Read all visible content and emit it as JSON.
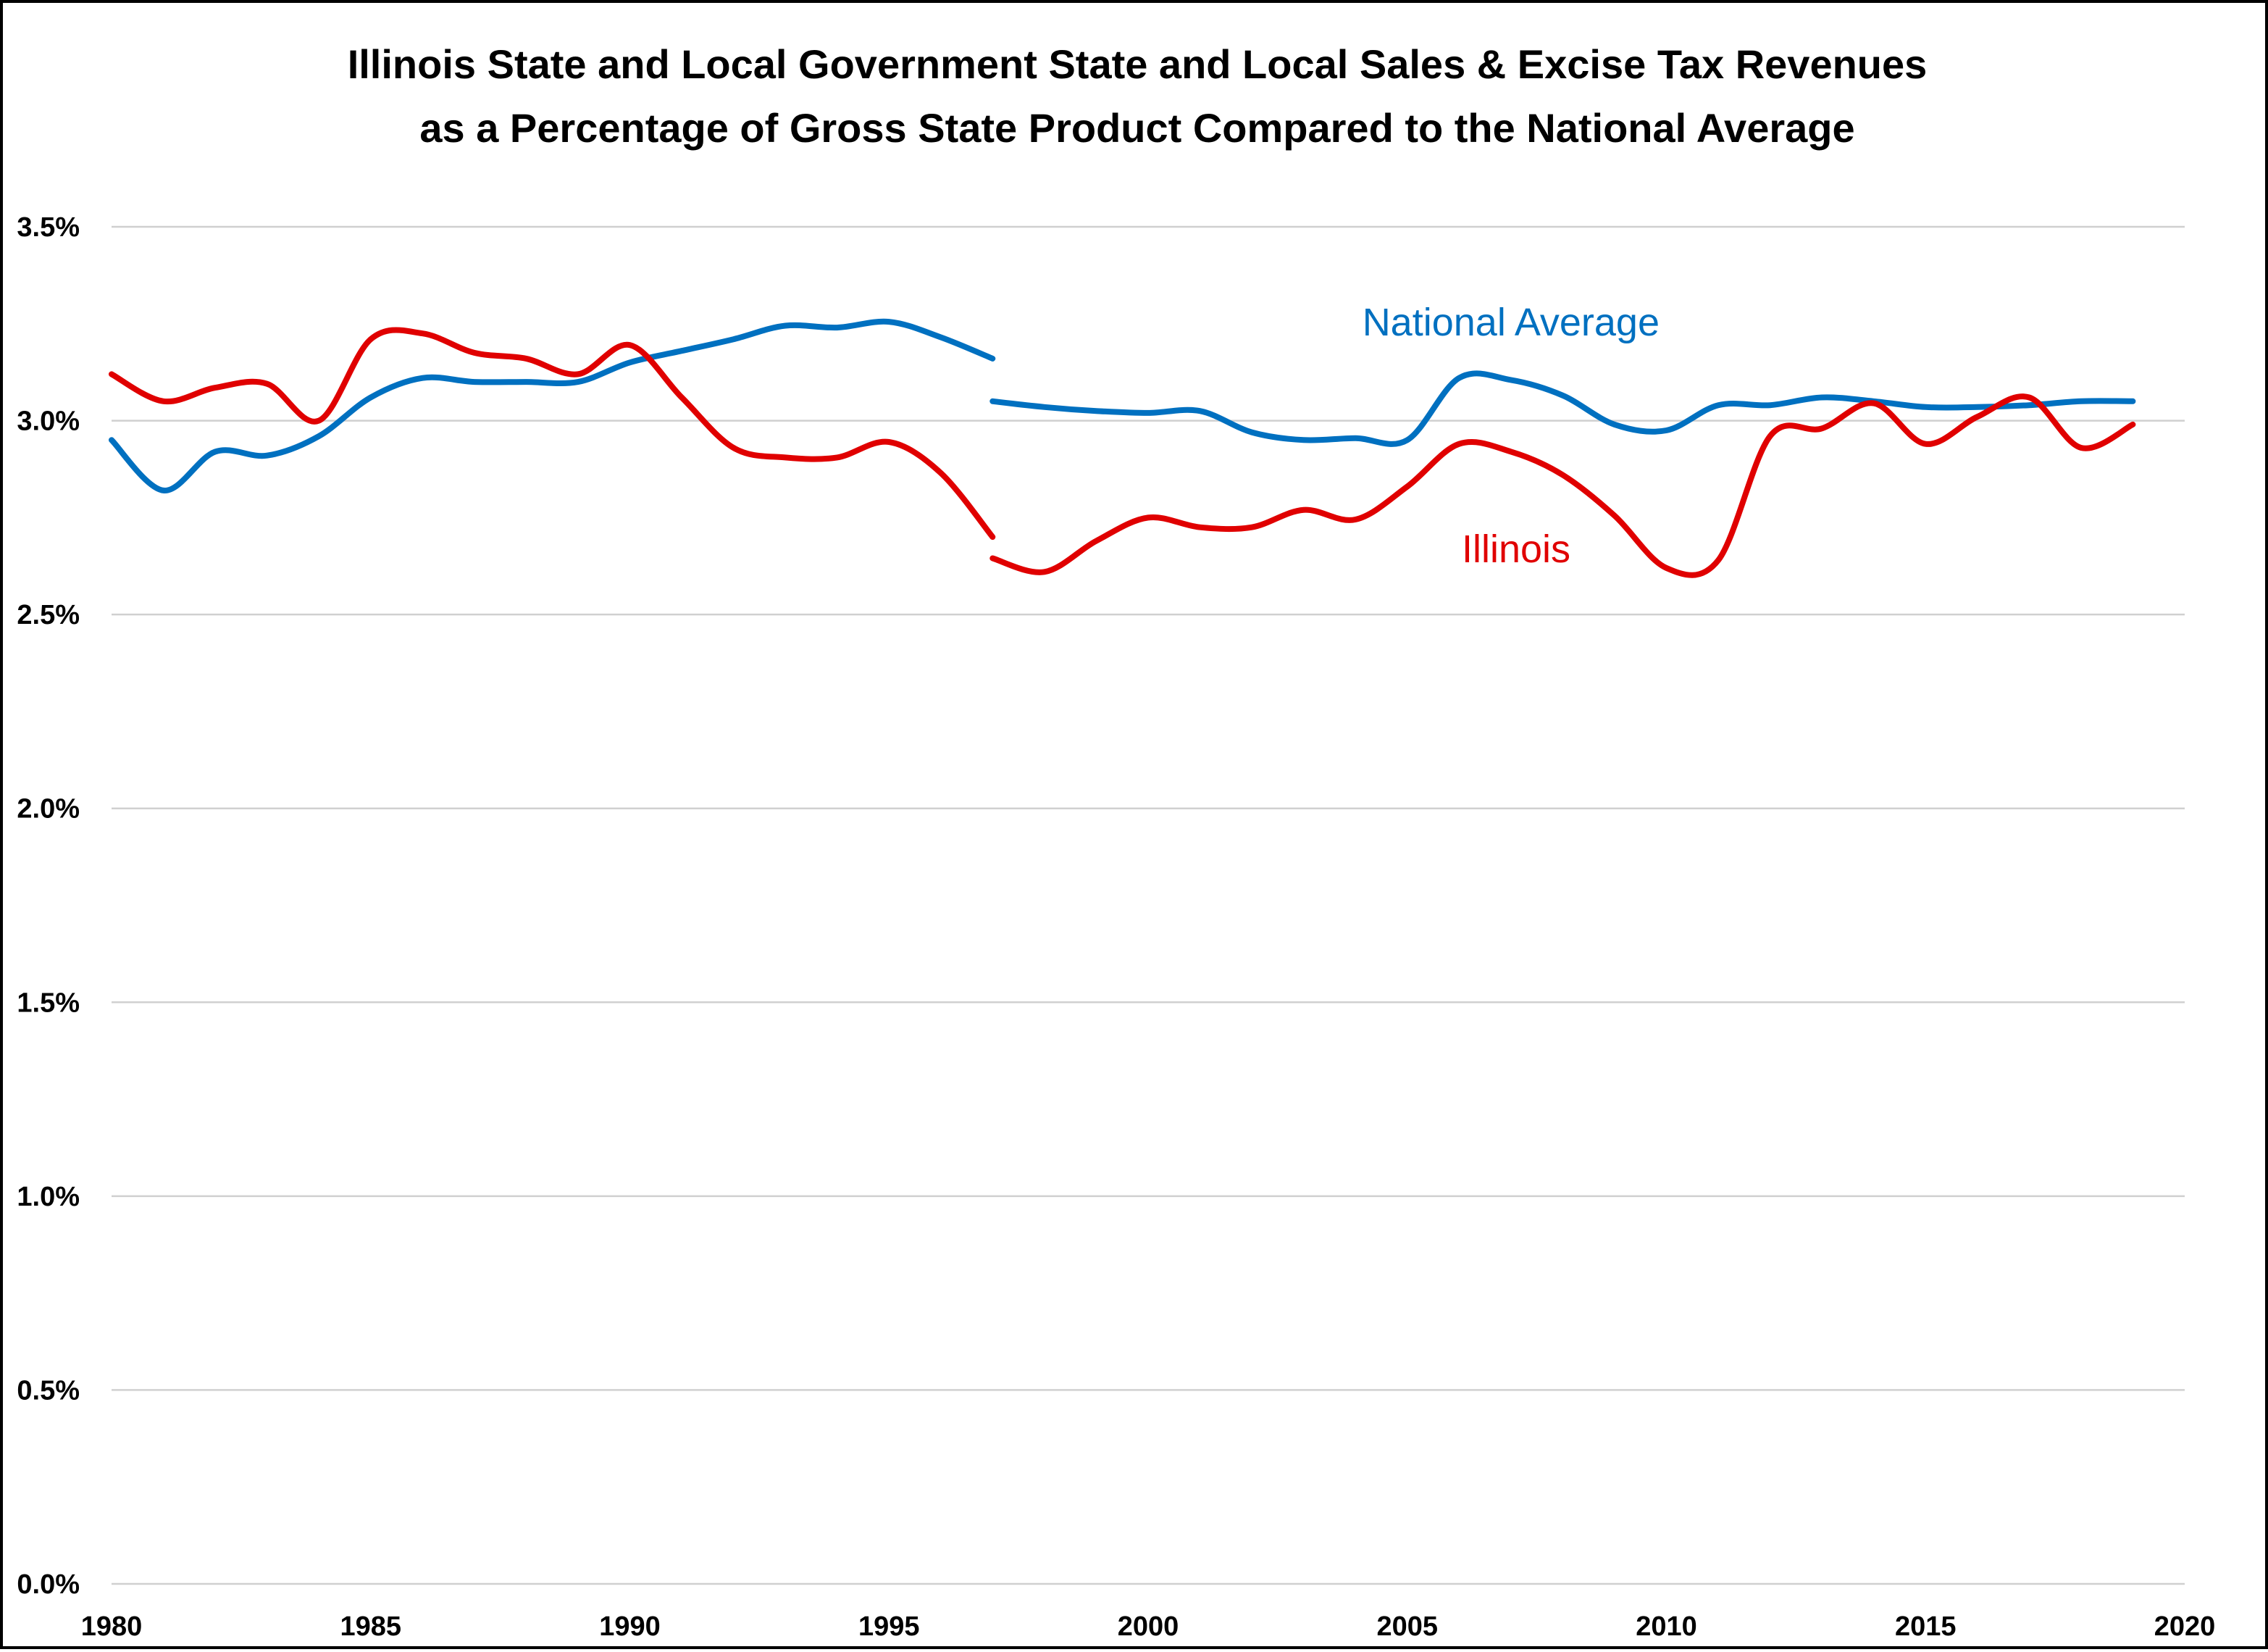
{
  "chart_data": {
    "type": "line",
    "title": [
      "Illinois State and Local Government State and Local Sales & Excise Tax Revenues",
      "as a Percentage of Gross State Product Compared to the National Average"
    ],
    "xlabel": "",
    "ylabel": "",
    "xlim": [
      1980,
      2020
    ],
    "ylim": [
      0.0,
      3.5
    ],
    "x_ticks": [
      "1980",
      "1985",
      "1990",
      "1995",
      "2000",
      "2005",
      "2010",
      "2015",
      "2020"
    ],
    "y_ticks": [
      "0.0%",
      "0.5%",
      "1.0%",
      "1.5%",
      "2.0%",
      "2.5%",
      "3.0%",
      "3.5%"
    ],
    "grid": "horizontal",
    "legend": "inline-labels",
    "series": [
      {
        "name": "National Average",
        "color": "#0070c0",
        "segments": [
          {
            "x": [
              1980,
              1981,
              1982,
              1983,
              1984,
              1985,
              1986,
              1987,
              1988,
              1989,
              1990,
              1991,
              1992,
              1993,
              1994,
              1995,
              1996,
              1997
            ],
            "y": [
              2.95,
              2.82,
              2.92,
              2.91,
              2.96,
              3.06,
              3.11,
              3.1,
              3.1,
              3.1,
              3.15,
              3.18,
              3.21,
              3.245,
              3.24,
              3.255,
              3.215,
              3.16
            ]
          },
          {
            "x": [
              1997,
              1998,
              1999,
              2000,
              2001,
              2002,
              2003,
              2004,
              2005,
              2006,
              2007,
              2008,
              2009,
              2010,
              2011,
              2012,
              2013,
              2014,
              2015,
              2016,
              2017,
              2018,
              2019
            ],
            "y": [
              3.05,
              3.035,
              3.025,
              3.02,
              3.025,
              2.97,
              2.95,
              2.955,
              2.95,
              3.11,
              3.105,
              3.065,
              2.99,
              2.975,
              3.04,
              3.04,
              3.06,
              3.05,
              3.035,
              3.035,
              3.04,
              3.05,
              3.05
            ]
          }
        ]
      },
      {
        "name": "Illinois",
        "color": "#e00000",
        "segments": [
          {
            "x": [
              1980,
              1981,
              1982,
              1983,
              1984,
              1985,
              1986,
              1987,
              1988,
              1989,
              1990,
              1991,
              1992,
              1993,
              1994,
              1995,
              1996,
              1997
            ],
            "y": [
              3.12,
              3.05,
              3.085,
              3.095,
              3.0,
              3.21,
              3.225,
              3.175,
              3.16,
              3.12,
              3.195,
              3.06,
              2.93,
              2.905,
              2.905,
              2.945,
              2.865,
              2.7
            ]
          },
          {
            "x": [
              1997,
              1998,
              1999,
              2000,
              2001,
              2002,
              2003,
              2004,
              2005,
              2006,
              2007,
              2008,
              2009,
              2010,
              2011,
              2012,
              2013,
              2014,
              2015,
              2016,
              2017,
              2018,
              2019
            ],
            "y": [
              2.645,
              2.61,
              2.69,
              2.75,
              2.725,
              2.725,
              2.77,
              2.745,
              2.83,
              2.94,
              2.92,
              2.86,
              2.755,
              2.62,
              2.64,
              2.96,
              2.98,
              3.045,
              2.94,
              3.01,
              3.06,
              2.93,
              2.99
            ]
          }
        ]
      }
    ],
    "annotations": [
      {
        "text": "National Average",
        "series": "National Average",
        "x": 2007,
        "y": 3.22
      },
      {
        "text": "Illinois",
        "series": "Illinois",
        "x": 2007.1,
        "y": 2.635
      }
    ]
  }
}
